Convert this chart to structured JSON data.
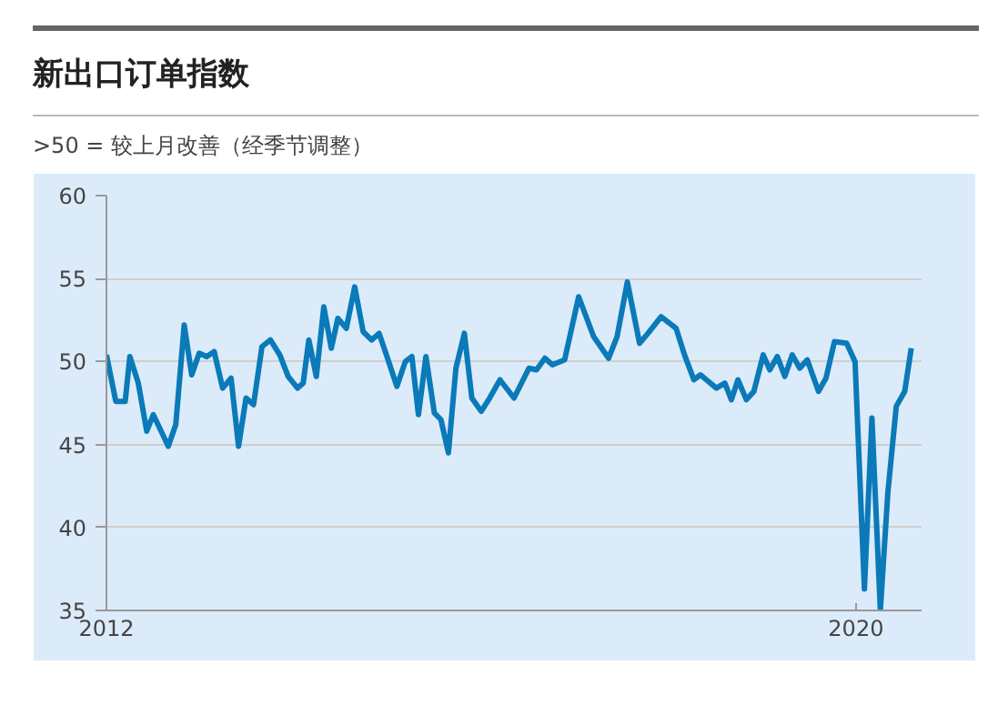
{
  "chart_data": {
    "type": "line",
    "title": "新出口订单指数",
    "subtitle": ">50 = 较上月改善（经季节调整）",
    "x": [
      2012.0,
      2012.1,
      2012.2,
      2012.25,
      2012.34,
      2012.43,
      2012.5,
      2012.66,
      2012.74,
      2012.83,
      2012.91,
      2012.99,
      2013.07,
      2013.15,
      2013.24,
      2013.33,
      2013.41,
      2013.49,
      2013.57,
      2013.66,
      2013.75,
      2013.85,
      2013.94,
      2014.04,
      2014.1,
      2014.16,
      2014.24,
      2014.32,
      2014.4,
      2014.47,
      2014.56,
      2014.65,
      2014.74,
      2014.83,
      2014.91,
      2015.0,
      2015.1,
      2015.19,
      2015.26,
      2015.33,
      2015.41,
      2015.5,
      2015.57,
      2015.65,
      2015.73,
      2015.82,
      2015.9,
      2016.0,
      2016.09,
      2016.2,
      2016.35,
      2016.51,
      2016.59,
      2016.68,
      2016.76,
      2016.89,
      2017.04,
      2017.2,
      2017.36,
      2017.45,
      2017.56,
      2017.69,
      2017.78,
      2017.92,
      2018.08,
      2018.17,
      2018.27,
      2018.34,
      2018.51,
      2018.6,
      2018.67,
      2018.74,
      2018.83,
      2018.91,
      2019.01,
      2019.08,
      2019.16,
      2019.24,
      2019.32,
      2019.4,
      2019.48,
      2019.6,
      2019.68,
      2019.77,
      2019.9,
      2019.99,
      2020.09,
      2020.17,
      2020.26,
      2020.34,
      2020.43,
      2020.52,
      2020.59
    ],
    "series": [
      {
        "color": "#0a7ab8",
        "values": [
          50.4,
          47.6,
          47.6,
          50.3,
          48.7,
          45.8,
          46.8,
          44.9,
          46.2,
          52.2,
          49.2,
          50.5,
          50.3,
          50.6,
          48.4,
          49.0,
          44.9,
          47.8,
          47.4,
          50.9,
          51.3,
          50.4,
          49.1,
          48.4,
          48.7,
          51.3,
          49.1,
          53.3,
          50.8,
          52.6,
          52.0,
          54.5,
          51.8,
          51.3,
          51.7,
          50.2,
          48.5,
          50.0,
          50.3,
          46.8,
          50.3,
          46.9,
          46.5,
          44.5,
          49.6,
          51.7,
          47.8,
          47.0,
          47.8,
          48.9,
          47.8,
          49.6,
          49.5,
          50.2,
          49.8,
          50.1,
          53.9,
          51.5,
          50.2,
          51.5,
          54.8,
          51.1,
          51.7,
          52.7,
          52.0,
          50.4,
          48.9,
          49.2,
          48.4,
          48.7,
          47.7,
          48.9,
          47.7,
          48.2,
          50.4,
          49.5,
          50.3,
          49.1,
          50.4,
          49.6,
          50.1,
          48.2,
          49.0,
          51.2,
          51.1,
          50.0,
          36.3,
          46.6,
          35.0,
          42.1,
          47.3,
          48.2,
          50.8
        ]
      }
    ],
    "xlim": [
      2012,
      2020.7
    ],
    "xticks": [
      2012,
      2020
    ],
    "ylim": [
      35,
      60
    ],
    "yticks": [
      35,
      40,
      45,
      50,
      55,
      60
    ],
    "grid": "y",
    "line_style": "solid"
  }
}
